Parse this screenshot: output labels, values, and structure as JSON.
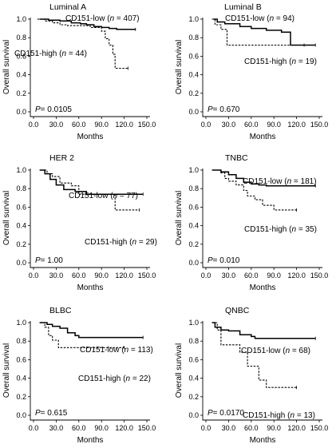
{
  "chart_data": [
    {
      "type": "line",
      "title": "Luminal A",
      "xlabel": "Months",
      "ylabel": "Overall survival",
      "xlim": [
        0,
        150
      ],
      "ylim": [
        0,
        1.0
      ],
      "xticks": [
        "0.0",
        "30.0",
        "60.0",
        "90.0",
        "120.0",
        "150.0"
      ],
      "yticks": [
        "0.0",
        "0.2",
        "0.4",
        "0.6",
        "0.8",
        "1.0"
      ],
      "pvalue": {
        "label": "P",
        "value": "= 0.0105"
      },
      "series": [
        {
          "name": "CD151-low",
          "n": "407",
          "style": "solid",
          "x": [
            8,
            20,
            35,
            50,
            62,
            70,
            80,
            90,
            100,
            110,
            120,
            135
          ],
          "y": [
            1.0,
            0.99,
            0.98,
            0.96,
            0.95,
            0.94,
            0.92,
            0.91,
            0.9,
            0.89,
            0.89,
            0.89
          ]
        },
        {
          "name": "CD151-high",
          "n": "44",
          "style": "dashed",
          "x": [
            5,
            15,
            25,
            35,
            45,
            60,
            75,
            85,
            90,
            95,
            100,
            105,
            108,
            125
          ],
          "y": [
            1.0,
            0.98,
            0.96,
            0.94,
            0.93,
            0.93,
            0.91,
            0.91,
            0.87,
            0.79,
            0.72,
            0.62,
            0.47,
            0.47
          ]
        }
      ]
    },
    {
      "type": "line",
      "title": "Luminal B",
      "xlabel": "Months",
      "ylabel": "Overall survival",
      "xlim": [
        0,
        150
      ],
      "ylim": [
        0,
        1.0
      ],
      "xticks": [
        "0.0",
        "30.0",
        "60.0",
        "90.0",
        "120.0",
        "150.0"
      ],
      "yticks": [
        "0.0",
        "0.2",
        "0.4",
        "0.6",
        "0.8",
        "1.0"
      ],
      "pvalue": {
        "label": "P",
        "value": "= 0.670"
      },
      "series": [
        {
          "name": "CD151-low",
          "n": "94",
          "style": "solid",
          "x": [
            10,
            15,
            25,
            45,
            60,
            80,
            100,
            110,
            112,
            145
          ],
          "y": [
            1.0,
            0.97,
            0.95,
            0.92,
            0.9,
            0.88,
            0.86,
            0.86,
            0.72,
            0.72
          ]
        },
        {
          "name": "CD151-high",
          "n": "19",
          "style": "dashed",
          "x": [
            8,
            12,
            20,
            28,
            130
          ],
          "y": [
            1.0,
            0.94,
            0.89,
            0.72,
            0.72
          ]
        }
      ]
    },
    {
      "type": "line",
      "title": "HER 2",
      "xlabel": "Months",
      "ylabel": "Overall survival",
      "xlim": [
        0,
        150
      ],
      "ylim": [
        0,
        1.0
      ],
      "xticks": [
        "0.0",
        "30.0",
        "60.0",
        "90.0",
        "120.0",
        "150.0"
      ],
      "yticks": [
        "0.0",
        "0.2",
        "0.4",
        "0.6",
        "0.8",
        "1.0"
      ],
      "pvalue": {
        "label": "P",
        "value": "= 1.00"
      },
      "series": [
        {
          "name": "CD151-low",
          "n": "77",
          "style": "solid",
          "x": [
            8,
            15,
            22,
            30,
            40,
            55,
            70,
            145
          ],
          "y": [
            1.0,
            0.96,
            0.9,
            0.84,
            0.79,
            0.77,
            0.74,
            0.74
          ]
        },
        {
          "name": "CD151-high",
          "n": "29",
          "style": "dashed",
          "x": [
            10,
            18,
            25,
            35,
            50,
            60,
            105,
            108,
            140
          ],
          "y": [
            1.0,
            0.96,
            0.93,
            0.86,
            0.83,
            0.74,
            0.74,
            0.57,
            0.57
          ]
        }
      ]
    },
    {
      "type": "line",
      "title": "TNBC",
      "xlabel": "Months",
      "ylabel": "Overall survival",
      "xlim": [
        0,
        150
      ],
      "ylim": [
        0,
        1.0
      ],
      "xticks": [
        "0.0",
        "30.0",
        "60.0",
        "90.0",
        "120.0",
        "150.0"
      ],
      "yticks": [
        "0.0",
        "0.2",
        "0.4",
        "0.6",
        "0.8",
        "1.0"
      ],
      "pvalue": {
        "label": "P",
        "value": "= 0.010"
      },
      "series": [
        {
          "name": "CD151-low",
          "n": "181",
          "style": "solid",
          "x": [
            8,
            20,
            30,
            40,
            50,
            60,
            70,
            80,
            145
          ],
          "y": [
            1.0,
            0.98,
            0.95,
            0.91,
            0.87,
            0.85,
            0.84,
            0.83,
            0.83
          ]
        },
        {
          "name": "CD151-high",
          "n": "35",
          "style": "dashed",
          "x": [
            10,
            20,
            25,
            30,
            40,
            50,
            55,
            65,
            75,
            90,
            120
          ],
          "y": [
            1.0,
            0.97,
            0.91,
            0.88,
            0.84,
            0.78,
            0.72,
            0.68,
            0.62,
            0.57,
            0.57
          ]
        }
      ]
    },
    {
      "type": "line",
      "title": "BLBC",
      "xlabel": "Months",
      "ylabel": "Overall survival",
      "xlim": [
        0,
        150
      ],
      "ylim": [
        0,
        1.0
      ],
      "xticks": [
        "0.0",
        "30.0",
        "60.0",
        "90.0",
        "120.0",
        "150.0"
      ],
      "yticks": [
        "0.0",
        "0.2",
        "0.4",
        "0.6",
        "0.8",
        "1.0"
      ],
      "pvalue": {
        "label": "P",
        "value": "= 0.615"
      },
      "series": [
        {
          "name": "CD151-low",
          "n": "113",
          "style": "solid",
          "x": [
            8,
            18,
            25,
            35,
            45,
            55,
            60,
            145
          ],
          "y": [
            1.0,
            0.98,
            0.96,
            0.94,
            0.89,
            0.86,
            0.84,
            0.84
          ]
        },
        {
          "name": "CD151-high",
          "n": "22",
          "style": "dashed",
          "x": [
            8,
            15,
            20,
            25,
            33,
            120
          ],
          "y": [
            1.0,
            0.95,
            0.86,
            0.81,
            0.73,
            0.73
          ]
        }
      ]
    },
    {
      "type": "line",
      "title": "QNBC",
      "xlabel": "Months",
      "ylabel": "Overall survival",
      "xlim": [
        0,
        150
      ],
      "ylim": [
        0,
        1.0
      ],
      "xticks": [
        "0.0",
        "30.0",
        "60.0",
        "90.0",
        "120.0",
        "150.0"
      ],
      "yticks": [
        "0.0",
        "0.2",
        "0.4",
        "0.6",
        "0.8",
        "1.0"
      ],
      "pvalue": {
        "label": "P",
        "value": "= 0.0170"
      },
      "series": [
        {
          "name": "CD151-low",
          "n": "68",
          "style": "solid",
          "x": [
            8,
            12,
            20,
            30,
            45,
            60,
            65,
            145
          ],
          "y": [
            1.0,
            0.95,
            0.92,
            0.91,
            0.87,
            0.85,
            0.83,
            0.83
          ]
        },
        {
          "name": "CD151-high",
          "n": "13",
          "style": "dashed",
          "x": [
            8,
            15,
            20,
            45,
            55,
            70,
            80,
            120
          ],
          "y": [
            1.0,
            0.92,
            0.76,
            0.68,
            0.53,
            0.38,
            0.3,
            0.3
          ]
        }
      ]
    }
  ]
}
